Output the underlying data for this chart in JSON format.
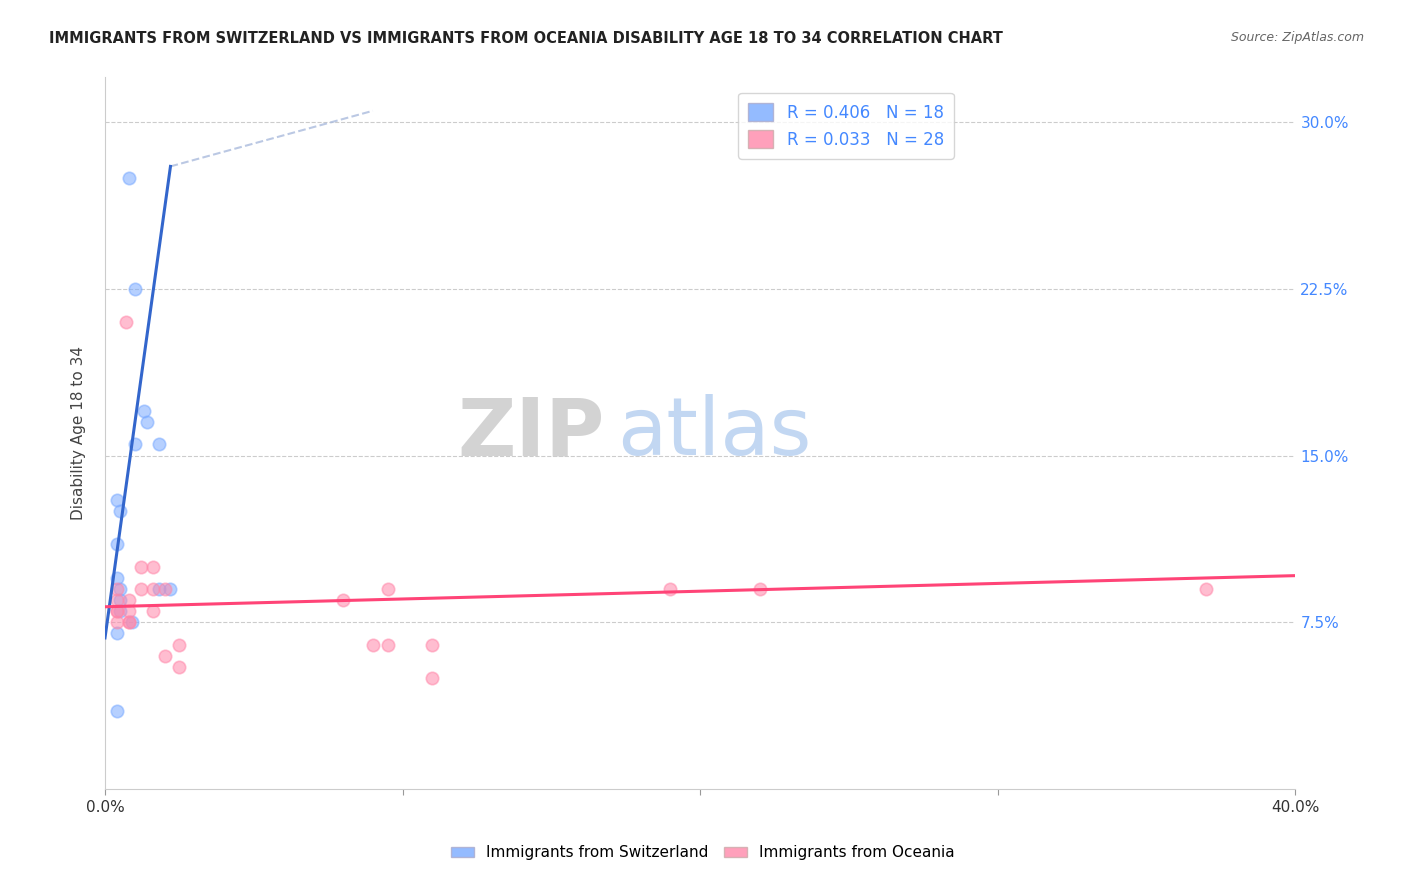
{
  "title": "IMMIGRANTS FROM SWITZERLAND VS IMMIGRANTS FROM OCEANIA DISABILITY AGE 18 TO 34 CORRELATION CHART",
  "source": "Source: ZipAtlas.com",
  "ylabel": "Disability Age 18 to 34",
  "ytick_labels": [
    "7.5%",
    "15.0%",
    "22.5%",
    "30.0%"
  ],
  "ytick_values": [
    0.075,
    0.15,
    0.225,
    0.3
  ],
  "xlim": [
    0.0,
    0.4
  ],
  "ylim": [
    0.0,
    0.32
  ],
  "watermark_zip": "ZIP",
  "watermark_atlas": "atlas",
  "legend_entry1_label": "R = 0.406   N = 18",
  "legend_entry2_label": "R = 0.033   N = 28",
  "series1_color": "#7aaaff",
  "series2_color": "#ff88aa",
  "trendline1_color": "#3366cc",
  "trendline2_color": "#ff4477",
  "dashed_color": "#aabbdd",
  "background_color": "#ffffff",
  "series1_name": "Immigrants from Switzerland",
  "series2_name": "Immigrants from Oceania",
  "swiss_x": [
    0.008,
    0.01,
    0.013,
    0.014,
    0.01,
    0.018,
    0.004,
    0.005,
    0.004,
    0.004,
    0.005,
    0.018,
    0.022,
    0.005,
    0.005,
    0.009,
    0.004,
    0.004
  ],
  "swiss_y": [
    0.275,
    0.225,
    0.17,
    0.165,
    0.155,
    0.155,
    0.13,
    0.125,
    0.11,
    0.095,
    0.09,
    0.09,
    0.09,
    0.085,
    0.08,
    0.075,
    0.07,
    0.035
  ],
  "oceania_x": [
    0.007,
    0.004,
    0.004,
    0.004,
    0.008,
    0.004,
    0.004,
    0.008,
    0.008,
    0.008,
    0.012,
    0.012,
    0.016,
    0.016,
    0.016,
    0.02,
    0.02,
    0.025,
    0.025,
    0.08,
    0.09,
    0.095,
    0.095,
    0.11,
    0.11,
    0.19,
    0.22,
    0.37
  ],
  "oceania_y": [
    0.21,
    0.09,
    0.085,
    0.08,
    0.085,
    0.08,
    0.075,
    0.08,
    0.075,
    0.075,
    0.1,
    0.09,
    0.1,
    0.09,
    0.08,
    0.09,
    0.06,
    0.065,
    0.055,
    0.085,
    0.065,
    0.065,
    0.09,
    0.065,
    0.05,
    0.09,
    0.09,
    0.09
  ],
  "swiss_trend_x": [
    0.0,
    0.022
  ],
  "swiss_trend_y": [
    0.068,
    0.28
  ],
  "oceania_trend_x": [
    0.0,
    0.4
  ],
  "oceania_trend_y": [
    0.082,
    0.096
  ],
  "dashed_trend_x": [
    0.022,
    0.09
  ],
  "dashed_trend_y": [
    0.28,
    0.305
  ],
  "xtick_positions": [
    0.0,
    0.1,
    0.2,
    0.3,
    0.4
  ],
  "xtick_labels_bottom": [
    "0.0%",
    "",
    "",
    "",
    "40.0%"
  ],
  "marker_size": 80,
  "marker_alpha": 0.55,
  "marker_linewidth": 1.2
}
